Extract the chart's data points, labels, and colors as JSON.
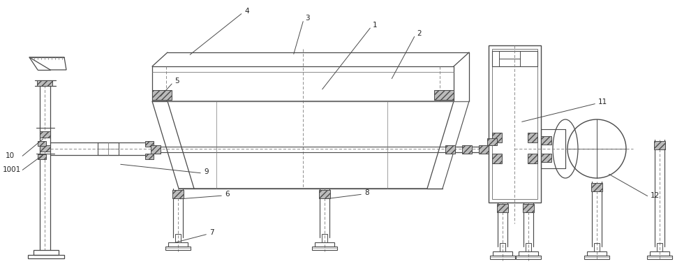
{
  "bg_color": "#ffffff",
  "lc": "#4a4a4a",
  "dc": "#7a7a7a",
  "hc": "#bbbbbb",
  "figsize": [
    10.0,
    3.78
  ],
  "dpi": 100
}
